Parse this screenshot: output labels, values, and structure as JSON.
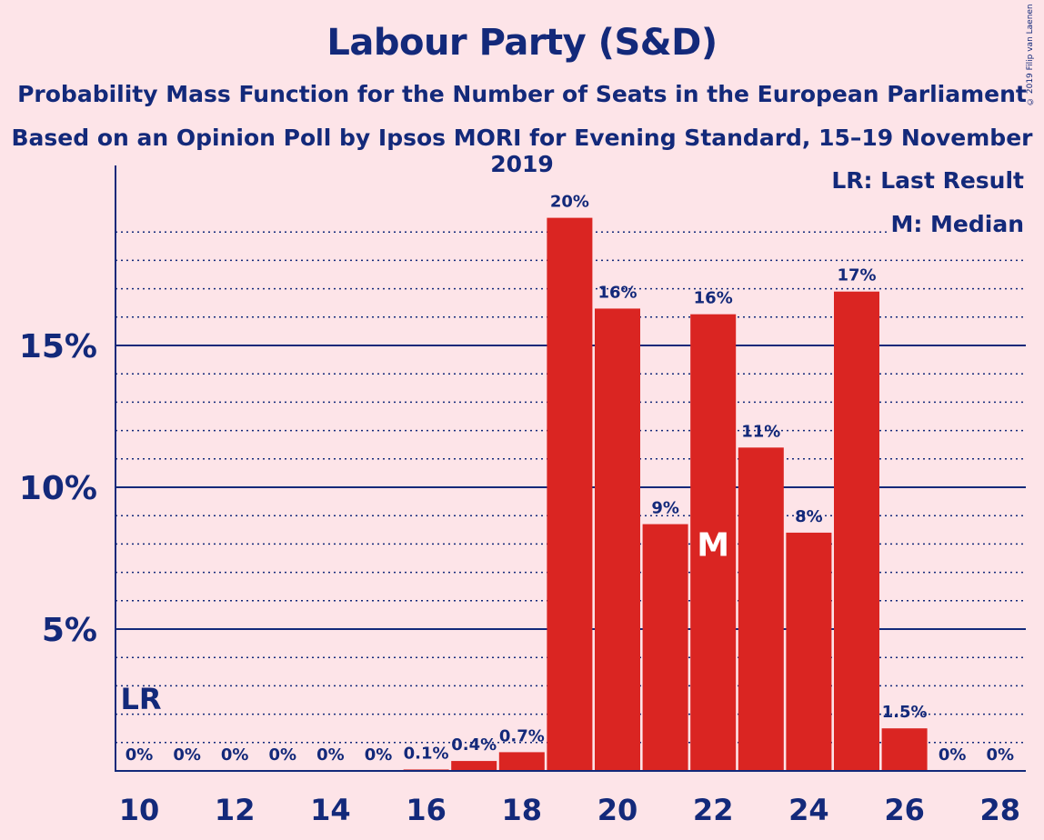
{
  "chart_data": {
    "type": "bar",
    "title": "Labour Party (S&D)",
    "subtitle": "Probability Mass Function for the Number of Seats in the European Parliament",
    "subtitle2": "Based on an Opinion Poll by Ipsos MORI for Evening Standard, 15–19 November 2019",
    "copyright": "© 2019 Filip van Laenen",
    "x": [
      10,
      11,
      12,
      13,
      14,
      15,
      16,
      17,
      18,
      19,
      20,
      21,
      22,
      23,
      24,
      25,
      26,
      27,
      28
    ],
    "values": [
      0,
      0,
      0,
      0,
      0,
      0,
      0.05,
      0.35,
      0.66,
      19.5,
      16.3,
      8.7,
      16.1,
      11.4,
      8.4,
      16.9,
      1.5,
      0,
      0
    ],
    "data_labels": [
      "0%",
      "0%",
      "0%",
      "0%",
      "0%",
      "0%",
      "0.1%",
      "0.4%",
      "0.7%",
      "20%",
      "16%",
      "9%",
      "16%",
      "11%",
      "8%",
      "17%",
      "1.5%",
      "0%",
      "0%"
    ],
    "x_ticks": [
      "10",
      "12",
      "14",
      "16",
      "18",
      "20",
      "22",
      "24",
      "26",
      "28"
    ],
    "y_ticks": [
      "5%",
      "10%",
      "15%"
    ],
    "ylim": [
      0,
      21
    ],
    "last_result_seat": 10,
    "last_result_label": "LR",
    "median_seat": 22,
    "median_label": "M",
    "legend": {
      "lr": "LR: Last Result",
      "m": "M: Median",
      "placement": "top-right"
    },
    "grid": true,
    "bar_color": "#DA2522",
    "text_color": "#13297A"
  }
}
